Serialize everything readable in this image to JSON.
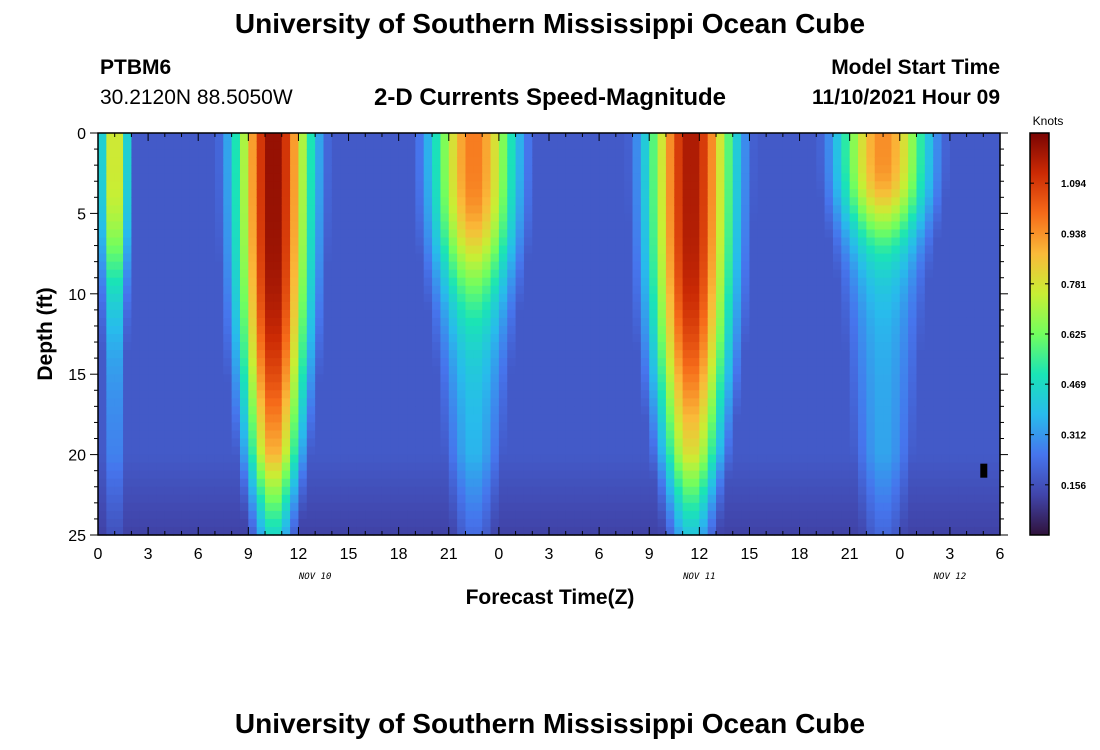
{
  "page": {
    "title": "University of Southern Mississippi Ocean Cube",
    "station_id": "PTBM6",
    "coordinates": "30.2120N  88.5050W",
    "subtitle": "2-D Currents Speed-Magnitude",
    "model_start_label": "Model Start Time",
    "model_start_value": "11/10/2021 Hour 09",
    "footer_title": "University of Southern Mississippi Ocean Cube"
  },
  "chart_data": {
    "type": "heatmap",
    "title": "2-D Currents Speed-Magnitude",
    "xlabel": "Forecast Time(Z)",
    "ylabel": "Depth (ft)",
    "x_hours_range": [
      0,
      54
    ],
    "ylim": [
      0,
      25
    ],
    "y_inverted": true,
    "x_ticks": [
      {
        "hour": 0,
        "label": "0"
      },
      {
        "hour": 3,
        "label": "3"
      },
      {
        "hour": 6,
        "label": "6"
      },
      {
        "hour": 9,
        "label": "9"
      },
      {
        "hour": 12,
        "label": "12"
      },
      {
        "hour": 15,
        "label": "15"
      },
      {
        "hour": 18,
        "label": "18"
      },
      {
        "hour": 21,
        "label": "21"
      },
      {
        "hour": 24,
        "label": "0"
      },
      {
        "hour": 27,
        "label": "3"
      },
      {
        "hour": 30,
        "label": "6"
      },
      {
        "hour": 33,
        "label": "9"
      },
      {
        "hour": 36,
        "label": "12"
      },
      {
        "hour": 39,
        "label": "15"
      },
      {
        "hour": 42,
        "label": "18"
      },
      {
        "hour": 45,
        "label": "21"
      },
      {
        "hour": 48,
        "label": "0"
      },
      {
        "hour": 51,
        "label": "3"
      },
      {
        "hour": 54,
        "label": "6"
      }
    ],
    "y_ticks": [
      {
        "depth": 0,
        "label": "0"
      },
      {
        "depth": 5,
        "label": "5"
      },
      {
        "depth": 10,
        "label": "10"
      },
      {
        "depth": 15,
        "label": "15"
      },
      {
        "depth": 20,
        "label": "20"
      },
      {
        "depth": 25,
        "label": "25"
      }
    ],
    "date_labels": [
      {
        "hour": 13,
        "label": "NOV 10"
      },
      {
        "hour": 36,
        "label": "NOV 11"
      },
      {
        "hour": 51,
        "label": "NOV 12"
      }
    ],
    "colorbar": {
      "title": "Knots",
      "min": 0.0,
      "max": 1.25,
      "ticks": [
        0.156,
        0.312,
        0.469,
        0.625,
        0.781,
        0.938,
        1.094
      ],
      "tick_labels": [
        "0.156",
        "0.312",
        "0.469",
        "0.625",
        "0.781",
        "0.938",
        "1.094"
      ]
    },
    "peaks": [
      {
        "hour": 1.0,
        "width": 0.9,
        "amp": 0.82,
        "depth_reach": 9
      },
      {
        "hour": 10.5,
        "width": 2.3,
        "amp": 1.22,
        "depth_reach": 22
      },
      {
        "hour": 22.5,
        "width": 2.6,
        "amp": 0.98,
        "depth_reach": 9
      },
      {
        "hour": 35.5,
        "width": 2.6,
        "amp": 1.18,
        "depth_reach": 20
      },
      {
        "hour": 47.0,
        "width": 2.8,
        "amp": 0.95,
        "depth_reach": 6
      }
    ],
    "background_speed": 0.18,
    "marker": {
      "hour": 53.0,
      "depth": 21.0
    }
  }
}
